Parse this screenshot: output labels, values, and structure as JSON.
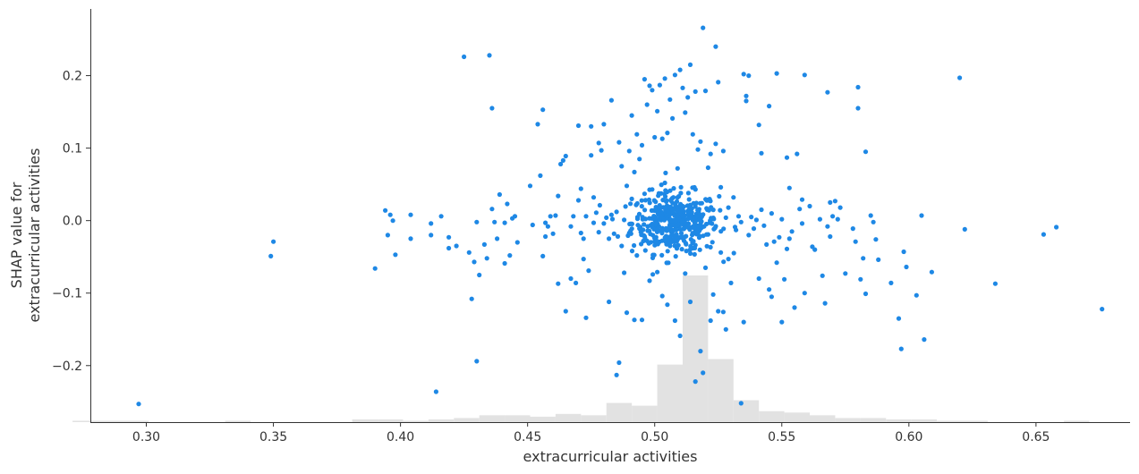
{
  "chart_data": {
    "type": "scatter",
    "xlabel": "extracurricular activities",
    "ylabel_lines": [
      "SHAP value for",
      "extracurricular activities"
    ],
    "xlim": [
      0.278,
      0.687
    ],
    "ylim": [
      -0.278,
      0.292
    ],
    "x_ticks": [
      0.3,
      0.35,
      0.4,
      0.45,
      0.5,
      0.55,
      0.6,
      0.65
    ],
    "x_tick_labels": [
      "0.30",
      "0.35",
      "0.40",
      "0.45",
      "0.50",
      "0.55",
      "0.60",
      "0.65"
    ],
    "y_ticks": [
      -0.2,
      -0.1,
      0.0,
      0.1,
      0.2
    ],
    "y_tick_labels": [
      "−0.2",
      "−0.1",
      "0.0",
      "0.1",
      "0.2"
    ],
    "grid": false,
    "colors": {
      "point": "#1E88E5",
      "histogram": "#e2e2e2",
      "axis": "#333333"
    },
    "histogram": {
      "bin_edges": [
        0.271,
        0.281,
        0.291,
        0.301,
        0.311,
        0.321,
        0.331,
        0.341,
        0.351,
        0.361,
        0.371,
        0.381,
        0.391,
        0.401,
        0.411,
        0.421,
        0.431,
        0.441,
        0.451,
        0.461,
        0.471,
        0.481,
        0.491,
        0.501,
        0.511,
        0.521,
        0.531,
        0.541,
        0.551,
        0.561,
        0.571,
        0.581,
        0.591,
        0.601,
        0.611,
        0.621,
        0.631,
        0.641,
        0.651,
        0.661,
        0.671,
        0.681
      ],
      "counts": [
        1,
        1,
        1,
        0,
        0,
        0,
        1,
        0,
        0,
        0,
        0,
        2,
        2,
        1,
        2,
        3,
        5,
        5,
        4,
        6,
        5,
        14,
        12,
        42,
        107,
        46,
        16,
        8,
        7,
        5,
        3,
        3,
        2,
        2,
        1,
        1,
        0,
        0,
        0,
        1,
        0
      ]
    },
    "points": [
      [
        0.297,
        -0.253
      ],
      [
        0.349,
        -0.049
      ],
      [
        0.35,
        -0.029
      ],
      [
        0.39,
        -0.066
      ],
      [
        0.394,
        0.014
      ],
      [
        0.395,
        -0.02
      ],
      [
        0.396,
        0.008
      ],
      [
        0.397,
        0.0
      ],
      [
        0.398,
        -0.047
      ],
      [
        0.404,
        -0.025
      ],
      [
        0.404,
        0.008
      ],
      [
        0.414,
        -0.236
      ],
      [
        0.416,
        0.006
      ],
      [
        0.412,
        -0.02
      ],
      [
        0.412,
        -0.004
      ],
      [
        0.419,
        -0.038
      ],
      [
        0.419,
        -0.023
      ],
      [
        0.422,
        -0.035
      ],
      [
        0.425,
        0.226
      ],
      [
        0.427,
        -0.044
      ],
      [
        0.428,
        -0.108
      ],
      [
        0.429,
        -0.057
      ],
      [
        0.43,
        -0.194
      ],
      [
        0.43,
        -0.002
      ],
      [
        0.431,
        -0.075
      ],
      [
        0.433,
        -0.033
      ],
      [
        0.434,
        -0.052
      ],
      [
        0.435,
        0.228
      ],
      [
        0.436,
        0.155
      ],
      [
        0.436,
        0.016
      ],
      [
        0.437,
        -0.002
      ],
      [
        0.438,
        -0.025
      ],
      [
        0.439,
        0.036
      ],
      [
        0.441,
        -0.059
      ],
      [
        0.441,
        -0.003
      ],
      [
        0.442,
        0.023
      ],
      [
        0.443,
        -0.048
      ],
      [
        0.444,
        0.003
      ],
      [
        0.445,
        0.006
      ],
      [
        0.446,
        -0.03
      ],
      [
        0.451,
        0.048
      ],
      [
        0.452,
        -0.006
      ],
      [
        0.454,
        0.133
      ],
      [
        0.455,
        0.062
      ],
      [
        0.456,
        0.153
      ],
      [
        0.456,
        -0.049
      ],
      [
        0.457,
        -0.022
      ],
      [
        0.457,
        -0.003
      ],
      [
        0.458,
        -0.008
      ],
      [
        0.459,
        0.006
      ],
      [
        0.46,
        -0.018
      ],
      [
        0.461,
        0.007
      ],
      [
        0.462,
        -0.087
      ],
      [
        0.462,
        0.034
      ],
      [
        0.463,
        0.078
      ],
      [
        0.464,
        0.083
      ],
      [
        0.465,
        0.089
      ],
      [
        0.465,
        -0.125
      ],
      [
        0.467,
        -0.008
      ],
      [
        0.467,
        -0.08
      ],
      [
        0.468,
        0.006
      ],
      [
        0.469,
        -0.086
      ],
      [
        0.47,
        0.131
      ],
      [
        0.47,
        0.028
      ],
      [
        0.471,
        -0.017
      ],
      [
        0.471,
        0.044
      ],
      [
        0.472,
        -0.025
      ],
      [
        0.472,
        -0.053
      ],
      [
        0.473,
        -0.134
      ],
      [
        0.473,
        0.006
      ],
      [
        0.474,
        -0.069
      ],
      [
        0.475,
        0.09
      ],
      [
        0.475,
        0.13
      ],
      [
        0.476,
        0.032
      ],
      [
        0.476,
        -0.003
      ],
      [
        0.477,
        0.011
      ],
      [
        0.478,
        0.107
      ],
      [
        0.478,
        -0.016
      ],
      [
        0.479,
        0.097
      ],
      [
        0.48,
        0.133
      ],
      [
        0.48,
        -0.004
      ],
      [
        0.481,
        0.004
      ],
      [
        0.482,
        -0.025
      ],
      [
        0.482,
        -0.112
      ],
      [
        0.483,
        0.166
      ],
      [
        0.483,
        0.008
      ],
      [
        0.484,
        -0.018
      ],
      [
        0.485,
        -0.213
      ],
      [
        0.485,
        0.012
      ],
      [
        0.486,
        0.108
      ],
      [
        0.486,
        -0.196
      ],
      [
        0.487,
        0.075
      ],
      [
        0.487,
        -0.035
      ],
      [
        0.488,
        0.001
      ],
      [
        0.488,
        -0.072
      ],
      [
        0.489,
        0.048
      ],
      [
        0.489,
        -0.127
      ],
      [
        0.49,
        0.096
      ],
      [
        0.49,
        -0.017
      ],
      [
        0.491,
        0.145
      ],
      [
        0.491,
        0.03
      ],
      [
        0.492,
        -0.137
      ],
      [
        0.492,
        0.067
      ],
      [
        0.493,
        0.119
      ],
      [
        0.493,
        -0.048
      ],
      [
        0.494,
        0.085
      ],
      [
        0.494,
        -0.011
      ],
      [
        0.495,
        0.104
      ],
      [
        0.495,
        -0.137
      ],
      [
        0.496,
        0.195
      ],
      [
        0.496,
        0.037
      ],
      [
        0.497,
        0.16
      ],
      [
        0.497,
        -0.028
      ],
      [
        0.498,
        0.186
      ],
      [
        0.498,
        -0.083
      ],
      [
        0.499,
        0.18
      ],
      [
        0.499,
        0.043
      ],
      [
        0.5,
        0.115
      ],
      [
        0.5,
        -0.009
      ],
      [
        0.501,
        0.151
      ],
      [
        0.501,
        -0.071
      ],
      [
        0.502,
        0.187
      ],
      [
        0.502,
        0.002
      ],
      [
        0.503,
        0.113
      ],
      [
        0.503,
        -0.104
      ],
      [
        0.504,
        0.196
      ],
      [
        0.504,
        0.052
      ],
      [
        0.505,
        0.121
      ],
      [
        0.505,
        -0.116
      ],
      [
        0.506,
        0.167
      ],
      [
        0.506,
        -0.035
      ],
      [
        0.507,
        0.141
      ],
      [
        0.507,
        0.012
      ],
      [
        0.508,
        0.201
      ],
      [
        0.508,
        -0.138
      ],
      [
        0.509,
        0.072
      ],
      [
        0.509,
        -0.005
      ],
      [
        0.51,
        0.208
      ],
      [
        0.51,
        -0.159
      ],
      [
        0.511,
        0.183
      ],
      [
        0.511,
        0.02
      ],
      [
        0.512,
        0.149
      ],
      [
        0.512,
        -0.073
      ],
      [
        0.513,
        0.17
      ],
      [
        0.513,
        0.008
      ],
      [
        0.514,
        0.215
      ],
      [
        0.514,
        -0.112
      ],
      [
        0.515,
        0.119
      ],
      [
        0.515,
        -0.038
      ],
      [
        0.516,
        0.178
      ],
      [
        0.516,
        -0.222
      ],
      [
        0.517,
        0.098
      ],
      [
        0.517,
        0.001
      ],
      [
        0.518,
        0.109
      ],
      [
        0.518,
        -0.18
      ],
      [
        0.519,
        0.266
      ],
      [
        0.519,
        -0.21
      ],
      [
        0.52,
        0.179
      ],
      [
        0.52,
        -0.065
      ],
      [
        0.521,
        0.073
      ],
      [
        0.521,
        -0.019
      ],
      [
        0.522,
        0.092
      ],
      [
        0.522,
        -0.138
      ],
      [
        0.523,
        0.003
      ],
      [
        0.523,
        -0.102
      ],
      [
        0.524,
        0.24
      ],
      [
        0.524,
        0.106
      ],
      [
        0.525,
        0.191
      ],
      [
        0.525,
        -0.125
      ],
      [
        0.526,
        0.046
      ],
      [
        0.526,
        -0.044
      ],
      [
        0.527,
        0.096
      ],
      [
        0.527,
        -0.126
      ],
      [
        0.528,
        0.004
      ],
      [
        0.528,
        -0.15
      ],
      [
        0.529,
        0.018
      ],
      [
        0.529,
        -0.053
      ],
      [
        0.53,
        -0.086
      ],
      [
        0.531,
        0.032
      ],
      [
        0.532,
        -0.013
      ],
      [
        0.533,
        0.006
      ],
      [
        0.534,
        -0.002
      ],
      [
        0.534,
        -0.252
      ],
      [
        0.535,
        0.202
      ],
      [
        0.535,
        -0.14
      ],
      [
        0.536,
        0.172
      ],
      [
        0.536,
        0.165
      ],
      [
        0.537,
        0.2
      ],
      [
        0.537,
        -0.02
      ],
      [
        0.538,
        0.005
      ],
      [
        0.539,
        -0.011
      ],
      [
        0.54,
        0.001
      ],
      [
        0.541,
        0.132
      ],
      [
        0.541,
        -0.08
      ],
      [
        0.542,
        0.093
      ],
      [
        0.542,
        0.015
      ],
      [
        0.543,
        -0.007
      ],
      [
        0.544,
        -0.033
      ],
      [
        0.545,
        0.158
      ],
      [
        0.545,
        -0.095
      ],
      [
        0.546,
        0.01
      ],
      [
        0.546,
        -0.105
      ],
      [
        0.547,
        -0.029
      ],
      [
        0.548,
        0.203
      ],
      [
        0.548,
        -0.058
      ],
      [
        0.549,
        -0.023
      ],
      [
        0.55,
        0.002
      ],
      [
        0.55,
        -0.14
      ],
      [
        0.551,
        -0.081
      ],
      [
        0.552,
        0.087
      ],
      [
        0.552,
        -0.039
      ],
      [
        0.553,
        0.045
      ],
      [
        0.553,
        -0.025
      ],
      [
        0.554,
        -0.015
      ],
      [
        0.555,
        -0.12
      ],
      [
        0.556,
        0.092
      ],
      [
        0.557,
        0.016
      ],
      [
        0.558,
        0.029
      ],
      [
        0.558,
        -0.004
      ],
      [
        0.559,
        0.201
      ],
      [
        0.559,
        -0.1
      ],
      [
        0.561,
        0.02
      ],
      [
        0.562,
        -0.036
      ],
      [
        0.563,
        -0.04
      ],
      [
        0.565,
        0.002
      ],
      [
        0.566,
        -0.076
      ],
      [
        0.567,
        -0.114
      ],
      [
        0.568,
        0.177
      ],
      [
        0.568,
        -0.008
      ],
      [
        0.569,
        0.025
      ],
      [
        0.569,
        -0.022
      ],
      [
        0.57,
        0.006
      ],
      [
        0.571,
        0.027
      ],
      [
        0.572,
        0.002
      ],
      [
        0.573,
        0.018
      ],
      [
        0.575,
        -0.073
      ],
      [
        0.578,
        -0.011
      ],
      [
        0.579,
        -0.029
      ],
      [
        0.58,
        0.184
      ],
      [
        0.58,
        0.155
      ],
      [
        0.581,
        -0.081
      ],
      [
        0.582,
        -0.052
      ],
      [
        0.583,
        -0.101
      ],
      [
        0.583,
        0.095
      ],
      [
        0.585,
        0.007
      ],
      [
        0.586,
        -0.002
      ],
      [
        0.587,
        -0.026
      ],
      [
        0.588,
        -0.054
      ],
      [
        0.593,
        -0.086
      ],
      [
        0.596,
        -0.135
      ],
      [
        0.597,
        -0.177
      ],
      [
        0.598,
        -0.043
      ],
      [
        0.599,
        -0.064
      ],
      [
        0.603,
        -0.103
      ],
      [
        0.605,
        0.007
      ],
      [
        0.606,
        -0.164
      ],
      [
        0.609,
        -0.071
      ],
      [
        0.62,
        0.197
      ],
      [
        0.622,
        -0.012
      ],
      [
        0.634,
        -0.087
      ],
      [
        0.653,
        -0.019
      ],
      [
        0.658,
        -0.009
      ],
      [
        0.676,
        -0.122
      ]
    ],
    "cluster": {
      "center": [
        0.508,
        -0.003
      ],
      "count": 420,
      "sd_x": 0.0085,
      "sd_y": 0.021
    }
  }
}
